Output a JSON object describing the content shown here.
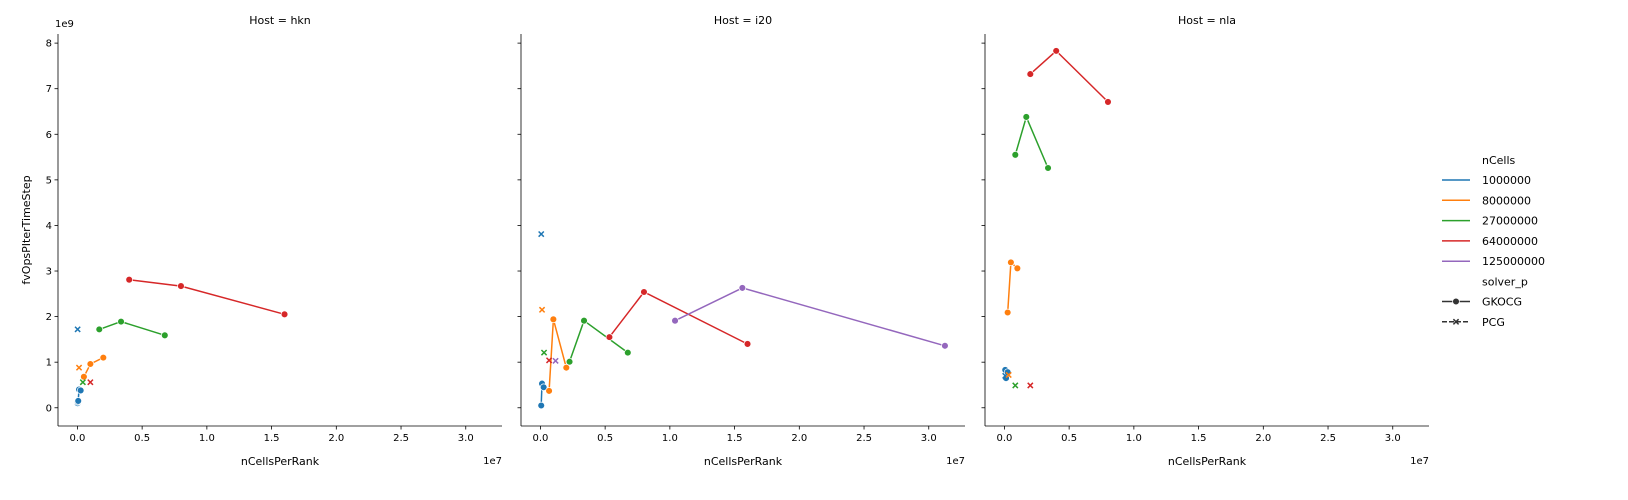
{
  "chart_data": {
    "type": "line",
    "facet_titles": [
      "Host = hkn",
      "Host = i20",
      "Host = nla"
    ],
    "xlabel": "nCellsPerRank",
    "ylabel": "fvOpsPIterTimeStep",
    "x_offset_label": "1e7",
    "y_offset_label": "1e9",
    "x_scale": 10000000,
    "y_scale": 1000000000,
    "xlim": [
      -1500000,
      32800000
    ],
    "ylim": [
      -400000000,
      8200000000
    ],
    "x_ticks": [
      0,
      5000000,
      10000000,
      15000000,
      20000000,
      25000000,
      30000000
    ],
    "x_tick_labels": [
      "0.0",
      "0.5",
      "1.0",
      "1.5",
      "2.0",
      "2.5",
      "3.0"
    ],
    "y_ticks": [
      0,
      1000000000,
      2000000000,
      3000000000,
      4000000000,
      5000000000,
      6000000000,
      7000000000,
      8000000000
    ],
    "y_tick_labels": [
      "0",
      "1",
      "2",
      "3",
      "4",
      "5",
      "6",
      "7",
      "8"
    ],
    "legend": {
      "hue_title": "nCells",
      "hue_entries": [
        {
          "label": "1000000",
          "color": "#1f77b4"
        },
        {
          "label": "8000000",
          "color": "#ff7f0e"
        },
        {
          "label": "27000000",
          "color": "#2ca02c"
        },
        {
          "label": "64000000",
          "color": "#d62728"
        },
        {
          "label": "125000000",
          "color": "#9467bd"
        }
      ],
      "style_title": "solver_p",
      "style_entries": [
        {
          "label": "GKOCG",
          "marker": "circle",
          "dash": "solid"
        },
        {
          "label": "PCG",
          "marker": "x",
          "dash": "dashed"
        }
      ],
      "placement": "right"
    },
    "panels": [
      {
        "host": "hkn",
        "series": [
          {
            "ncells": "1000000",
            "solver": "GKOCG",
            "color": "#1f77b4",
            "points": [
              [
                15600,
                100000000
              ],
              [
                31250,
                130000000
              ],
              [
                62500,
                150000000
              ],
              [
                125000,
                400000000
              ],
              [
                250000,
                380000000
              ]
            ]
          },
          {
            "ncells": "1000000",
            "solver": "PCG",
            "color": "#1f77b4",
            "points": [
              [
                15600,
                1720000000
              ]
            ]
          },
          {
            "ncells": "8000000",
            "solver": "GKOCG",
            "color": "#ff7f0e",
            "points": [
              [
                500000,
                680000000
              ],
              [
                1000000,
                960000000
              ],
              [
                2000000,
                1100000000
              ]
            ]
          },
          {
            "ncells": "8000000",
            "solver": "PCG",
            "color": "#ff7f0e",
            "points": [
              [
                125000,
                880000000
              ]
            ]
          },
          {
            "ncells": "27000000",
            "solver": "GKOCG",
            "color": "#2ca02c",
            "points": [
              [
                1690000,
                1720000000
              ],
              [
                3370000,
                1890000000
              ],
              [
                6750000,
                1590000000
              ]
            ]
          },
          {
            "ncells": "27000000",
            "solver": "PCG",
            "color": "#2ca02c",
            "points": [
              [
                420000,
                560000000
              ]
            ]
          },
          {
            "ncells": "64000000",
            "solver": "GKOCG",
            "color": "#d62728",
            "points": [
              [
                4000000,
                2810000000
              ],
              [
                8000000,
                2670000000
              ],
              [
                16000000,
                2050000000
              ]
            ]
          },
          {
            "ncells": "64000000",
            "solver": "PCG",
            "color": "#d62728",
            "points": [
              [
                1000000,
                560000000
              ]
            ]
          }
        ]
      },
      {
        "host": "i20",
        "series": [
          {
            "ncells": "1000000",
            "solver": "GKOCG",
            "color": "#1f77b4",
            "points": [
              [
                62500,
                50000000
              ],
              [
                125000,
                530000000
              ],
              [
                250000,
                450000000
              ]
            ]
          },
          {
            "ncells": "1000000",
            "solver": "PCG",
            "color": "#1f77b4",
            "points": [
              [
                62500,
                3810000000
              ]
            ]
          },
          {
            "ncells": "8000000",
            "solver": "GKOCG",
            "color": "#ff7f0e",
            "points": [
              [
                670000,
                370000000
              ],
              [
                1000000,
                1940000000
              ],
              [
                2000000,
                880000000
              ]
            ]
          },
          {
            "ncells": "8000000",
            "solver": "PCG",
            "color": "#ff7f0e",
            "points": [
              [
                125000,
                2150000000
              ]
            ]
          },
          {
            "ncells": "27000000",
            "solver": "GKOCG",
            "color": "#2ca02c",
            "points": [
              [
                2250000,
                1010000000
              ],
              [
                3370000,
                1910000000
              ],
              [
                6750000,
                1210000000
              ]
            ]
          },
          {
            "ncells": "27000000",
            "solver": "PCG",
            "color": "#2ca02c",
            "points": [
              [
                280000,
                1210000000
              ]
            ]
          },
          {
            "ncells": "64000000",
            "solver": "GKOCG",
            "color": "#d62728",
            "points": [
              [
                5330000,
                1550000000
              ],
              [
                8000000,
                2540000000
              ],
              [
                16000000,
                1400000000
              ]
            ]
          },
          {
            "ncells": "64000000",
            "solver": "PCG",
            "color": "#d62728",
            "points": [
              [
                670000,
                1040000000
              ]
            ]
          },
          {
            "ncells": "125000000",
            "solver": "GKOCG",
            "color": "#9467bd",
            "points": [
              [
                10400000,
                1910000000
              ],
              [
                15600000,
                2630000000
              ],
              [
                31250000,
                1360000000
              ]
            ]
          },
          {
            "ncells": "125000000",
            "solver": "PCG",
            "color": "#9467bd",
            "points": [
              [
                1170000,
                1030000000
              ]
            ]
          }
        ]
      },
      {
        "host": "nla",
        "series": [
          {
            "ncells": "1000000",
            "solver": "GKOCG",
            "color": "#1f77b4",
            "points": [
              [
                62500,
                830000000
              ],
              [
                125000,
                650000000
              ],
              [
                250000,
                780000000
              ]
            ]
          },
          {
            "ncells": "1000000",
            "solver": "PCG",
            "color": "#1f77b4",
            "points": [
              [
                62500,
                700000000
              ]
            ]
          },
          {
            "ncells": "8000000",
            "solver": "GKOCG",
            "color": "#ff7f0e",
            "points": [
              [
                250000,
                2090000000
              ],
              [
                500000,
                3190000000
              ],
              [
                1000000,
                3060000000
              ]
            ]
          },
          {
            "ncells": "8000000",
            "solver": "PCG",
            "color": "#ff7f0e",
            "points": [
              [
                330000,
                720000000
              ]
            ]
          },
          {
            "ncells": "27000000",
            "solver": "GKOCG",
            "color": "#2ca02c",
            "points": [
              [
                840000,
                5550000000
              ],
              [
                1690000,
                6380000000
              ],
              [
                3370000,
                5260000000
              ]
            ]
          },
          {
            "ncells": "27000000",
            "solver": "PCG",
            "color": "#2ca02c",
            "points": [
              [
                840000,
                490000000
              ]
            ]
          },
          {
            "ncells": "64000000",
            "solver": "GKOCG",
            "color": "#d62728",
            "points": [
              [
                2000000,
                7320000000
              ],
              [
                4000000,
                7830000000
              ],
              [
                8000000,
                6710000000
              ]
            ]
          },
          {
            "ncells": "64000000",
            "solver": "PCG",
            "color": "#d62728",
            "points": [
              [
                2000000,
                490000000
              ]
            ]
          }
        ]
      }
    ]
  }
}
